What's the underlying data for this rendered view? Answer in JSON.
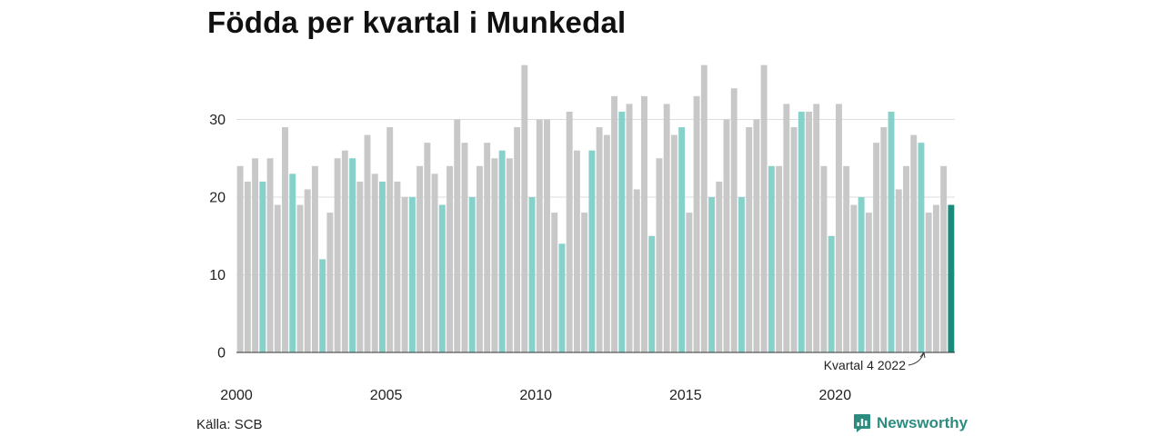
{
  "chart_data": {
    "type": "bar",
    "title": "Födda per kvartal i Munkedal",
    "xlabel": "",
    "ylabel": "",
    "ylim": [
      0,
      37
    ],
    "y_ticks": [
      0,
      10,
      20,
      30
    ],
    "x_ticks": [
      "2000",
      "2005",
      "2010",
      "2015",
      "2020"
    ],
    "start_year": 2000,
    "grid": true,
    "annotation": "Kvartal 4 2022",
    "source": "Källa: SCB",
    "brand": "Newsworthy",
    "colors": {
      "default": "#c8c8c8",
      "same_quarter": "#86d2ca",
      "latest": "#1a8a7c",
      "grid": "#dddddd",
      "axis": "#333333"
    },
    "values": [
      24,
      22,
      25,
      22,
      25,
      19,
      29,
      23,
      19,
      21,
      24,
      12,
      18,
      25,
      26,
      25,
      22,
      28,
      23,
      22,
      29,
      22,
      20,
      20,
      24,
      27,
      23,
      19,
      24,
      30,
      27,
      20,
      24,
      27,
      25,
      26,
      25,
      29,
      37,
      20,
      30,
      30,
      18,
      14,
      31,
      26,
      18,
      26,
      29,
      28,
      33,
      31,
      32,
      21,
      33,
      15,
      25,
      32,
      28,
      29,
      18,
      33,
      37,
      20,
      22,
      30,
      34,
      20,
      29,
      30,
      37,
      24,
      24,
      32,
      29,
      31,
      31,
      32,
      24,
      15,
      32,
      24,
      19,
      20,
      18,
      27,
      29,
      31,
      21,
      24,
      28,
      27,
      18,
      19,
      24,
      19
    ]
  }
}
